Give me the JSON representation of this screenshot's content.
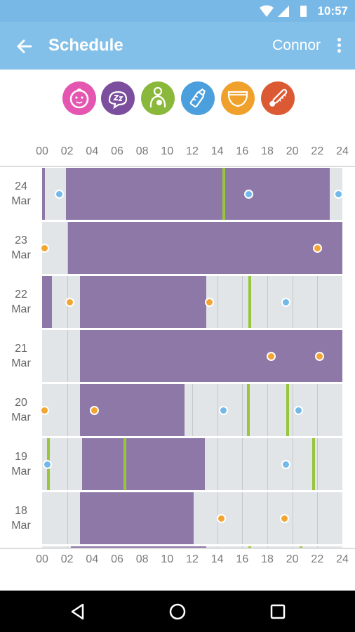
{
  "status": {
    "time": "10:57"
  },
  "header": {
    "title": "Schedule",
    "user": "Connor"
  },
  "categories": [
    {
      "name": "baby-face-icon",
      "color": "#e456b0"
    },
    {
      "name": "sleep-icon",
      "color": "#7c4f9e"
    },
    {
      "name": "nursing-icon",
      "color": "#8ab83a"
    },
    {
      "name": "bottle-icon",
      "color": "#4a9fdc"
    },
    {
      "name": "diaper-icon",
      "color": "#f0a12b"
    },
    {
      "name": "thermometer-icon",
      "color": "#dc5a33"
    }
  ],
  "axis_ticks": [
    "00",
    "02",
    "04",
    "06",
    "08",
    "10",
    "12",
    "14",
    "16",
    "18",
    "20",
    "22",
    "24"
  ],
  "days": [
    {
      "day": "24",
      "month": "Mar",
      "sleep": [
        [
          0,
          0.2
        ],
        [
          1.9,
          23.0
        ]
      ],
      "nursing": [
        14.5
      ],
      "bottle": [
        1.4,
        16.5,
        23.7
      ],
      "diaper": []
    },
    {
      "day": "23",
      "month": "Mar",
      "sleep": [
        [
          2.1,
          24.0
        ]
      ],
      "nursing": [],
      "bottle": [],
      "diaper": [
        0.2,
        22.0
      ]
    },
    {
      "day": "22",
      "month": "Mar",
      "sleep": [
        [
          0,
          0.8
        ],
        [
          3.0,
          13.1
        ]
      ],
      "nursing": [
        16.6
      ],
      "bottle": [
        19.5
      ],
      "diaper": [
        2.2,
        13.4
      ]
    },
    {
      "day": "21",
      "month": "Mar",
      "sleep": [
        [
          3.0,
          24.0
        ]
      ],
      "nursing": [],
      "bottle": [],
      "diaper": [
        18.3,
        22.2
      ]
    },
    {
      "day": "20",
      "month": "Mar",
      "sleep": [
        [
          3.0,
          11.4
        ]
      ],
      "nursing": [
        16.5,
        19.6
      ],
      "bottle": [
        14.5,
        20.5
      ],
      "diaper": [
        0.2,
        4.2
      ]
    },
    {
      "day": "19",
      "month": "Mar",
      "sleep": [
        [
          3.2,
          13.0
        ]
      ],
      "nursing": [
        0.5,
        6.6,
        21.7
      ],
      "bottle": [
        0.4,
        19.5
      ],
      "diaper": []
    },
    {
      "day": "18",
      "month": "Mar",
      "sleep": [
        [
          3.0,
          12.1
        ]
      ],
      "nursing": [],
      "bottle": [],
      "diaper": [
        14.3,
        19.4
      ]
    },
    {
      "day": "",
      "month": "",
      "sleep": [
        [
          2.3,
          13.1
        ]
      ],
      "nursing": [
        16.6,
        20.7
      ],
      "bottle": [],
      "diaper": []
    }
  ]
}
